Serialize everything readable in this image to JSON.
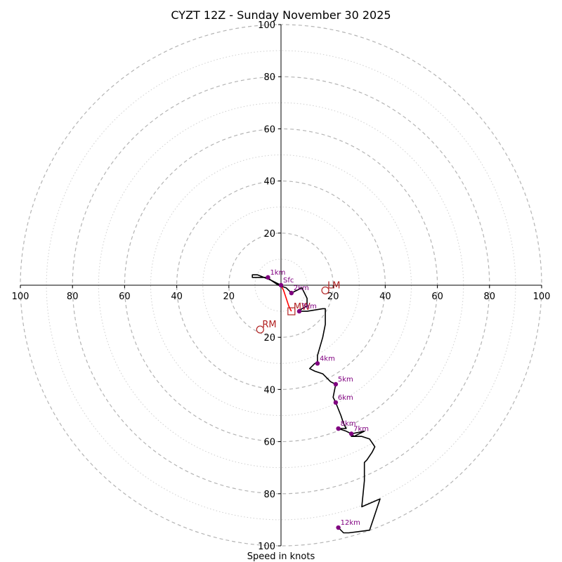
{
  "chart_data": {
    "type": "hodograph",
    "title": "CYZT 12Z - Sunday November 30 2025",
    "xlabel": "Speed in knots",
    "x_range": [
      -100,
      100
    ],
    "y_range": [
      -100,
      100
    ],
    "ring_major_every": 20,
    "ring_minor_every": 10,
    "tick_labels": {
      "top": [
        "100",
        "80",
        "60",
        "40",
        "20"
      ],
      "bottom": [
        "20",
        "40",
        "60",
        "80",
        "100"
      ],
      "left": [
        "100",
        "80",
        "60",
        "40",
        "20"
      ],
      "right": [
        "20",
        "40",
        "60",
        "80",
        "100"
      ],
      "top_values": [
        100,
        80,
        60,
        40,
        20
      ],
      "bottom_values": [
        20,
        40,
        60,
        80,
        100
      ],
      "left_values": [
        100,
        80,
        60,
        40,
        20
      ],
      "right_values": [
        20,
        40,
        60,
        80,
        100
      ]
    },
    "trace": [
      [
        0,
        0
      ],
      [
        -4,
        2
      ],
      [
        -9,
        4
      ],
      [
        -11,
        4
      ],
      [
        -11,
        3
      ],
      [
        -8,
        3
      ],
      [
        -6,
        3
      ],
      [
        -5,
        3
      ],
      [
        -4,
        2
      ],
      [
        -1,
        0
      ],
      [
        2,
        -1
      ],
      [
        4,
        -3
      ],
      [
        6,
        -2
      ],
      [
        8,
        -1
      ],
      [
        9,
        -3
      ],
      [
        10,
        -5
      ],
      [
        10,
        -8
      ],
      [
        8,
        -9
      ],
      [
        7,
        -10
      ],
      [
        10,
        -10
      ],
      [
        16,
        -9
      ],
      [
        17,
        -9
      ],
      [
        17,
        -15
      ],
      [
        16,
        -20
      ],
      [
        14,
        -27
      ],
      [
        14,
        -30
      ],
      [
        13,
        -30
      ],
      [
        11,
        -32
      ],
      [
        13,
        -33
      ],
      [
        16,
        -34
      ],
      [
        19,
        -37
      ],
      [
        21,
        -38
      ],
      [
        20,
        -43
      ],
      [
        21,
        -45
      ],
      [
        23,
        -50
      ],
      [
        24,
        -53
      ],
      [
        25,
        -55
      ],
      [
        22,
        -55
      ],
      [
        25,
        -56
      ],
      [
        27,
        -57
      ],
      [
        28,
        -58
      ],
      [
        32,
        -56
      ],
      [
        27,
        -57
      ],
      [
        27,
        -58
      ],
      [
        31,
        -58
      ],
      [
        34,
        -59
      ],
      [
        36,
        -62
      ],
      [
        35,
        -64
      ],
      [
        33,
        -67
      ],
      [
        32,
        -68
      ],
      [
        32,
        -75
      ],
      [
        31,
        -85
      ],
      [
        38,
        -82
      ],
      [
        36,
        -88
      ],
      [
        34,
        -94
      ],
      [
        26,
        -95
      ],
      [
        24,
        -95
      ],
      [
        22,
        -93
      ]
    ],
    "height_markers": [
      {
        "label": "Sfc",
        "u": 0,
        "v": 0
      },
      {
        "label": "1km",
        "u": -5,
        "v": 3
      },
      {
        "label": "2km",
        "u": 4,
        "v": -3
      },
      {
        "label": "3km",
        "u": 7,
        "v": -10
      },
      {
        "label": "4km",
        "u": 14,
        "v": -30
      },
      {
        "label": "5km",
        "u": 21,
        "v": -38
      },
      {
        "label": "6km",
        "u": 21,
        "v": -45
      },
      {
        "label": "7km",
        "u": 27,
        "v": -57
      },
      {
        "label": "8km",
        "u": 22,
        "v": -55
      },
      {
        "label": "12km",
        "u": 22,
        "v": -93
      }
    ],
    "motion": {
      "mean_wind": {
        "label": "MW",
        "u": 4,
        "v": -10
      },
      "left_mover": {
        "label": "LM",
        "u": 17,
        "v": -2
      },
      "right_mover": {
        "label": "RM",
        "u": -8,
        "v": -17
      },
      "storm_vector": [
        [
          0,
          0
        ],
        [
          1,
          -2
        ],
        [
          3,
          -8
        ],
        [
          4,
          -10
        ]
      ]
    },
    "colors": {
      "trace": "#000000",
      "marker": "#800080",
      "motion": "#b22222",
      "vector": "#ff0000",
      "ring": "#bbbbbb",
      "axis": "#000000"
    },
    "grid": true
  }
}
